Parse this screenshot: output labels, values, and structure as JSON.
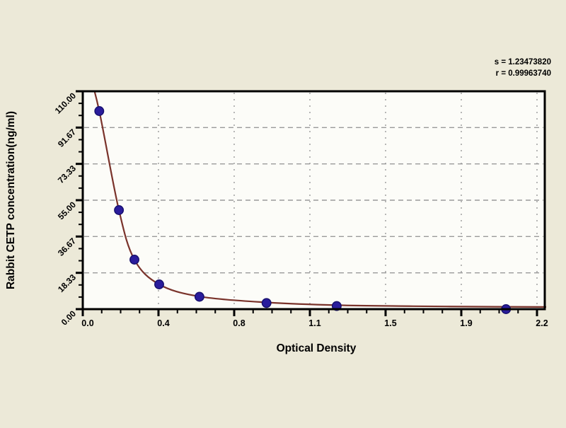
{
  "page": {
    "background": "#ece9d8"
  },
  "chart_data": {
    "type": "scatter",
    "title": "",
    "xlabel": "Optical Density",
    "ylabel": "Rabbit CETP concentration(ng/ml)",
    "xlim": [
      0,
      2.2
    ],
    "ylim": [
      0,
      110
    ],
    "grid": true,
    "legend": "none",
    "x_tick_labels": [
      "0.0",
      "0.4",
      "0.8",
      "1.1",
      "1.5",
      "1.9",
      "2.2"
    ],
    "y_tick_labels": [
      "0.00",
      "18.33",
      "36.67",
      "55.00",
      "73.33",
      "91.67",
      "110.00"
    ],
    "x_minor_per_interval": 3,
    "y_minor_per_interval": 2,
    "annotations": {
      "s": "s = 1.23473820",
      "r": "r = 0.99963740"
    },
    "series": [
      {
        "name": "standard-points",
        "marker": "filled-circle",
        "points": [
          [
            0.08,
            100
          ],
          [
            0.175,
            50
          ],
          [
            0.25,
            25
          ],
          [
            0.37,
            12.5
          ],
          [
            0.565,
            6.25
          ],
          [
            0.89,
            3.12
          ],
          [
            1.23,
            1.56
          ],
          [
            2.05,
            0
          ]
        ]
      }
    ],
    "fit_curve": {
      "name": "fitted-standard-curve",
      "points": [
        [
          0.035,
          118
        ],
        [
          0.08,
          100
        ],
        [
          0.175,
          50
        ],
        [
          0.25,
          25
        ],
        [
          0.37,
          12.5
        ],
        [
          0.565,
          6.4
        ],
        [
          0.89,
          3.4
        ],
        [
          1.23,
          2.0
        ],
        [
          1.6,
          1.5
        ],
        [
          2.0,
          1.2
        ],
        [
          2.245,
          1.1
        ]
      ]
    }
  },
  "colors": {
    "background": "#ece9d8",
    "plot_background": "#fcfcf8",
    "axis": "#000000",
    "grid": "#9a9a9a",
    "curve": "#7a332b",
    "marker": "#2a1c9c",
    "marker_edge": "#17106e",
    "text": "#000000"
  }
}
